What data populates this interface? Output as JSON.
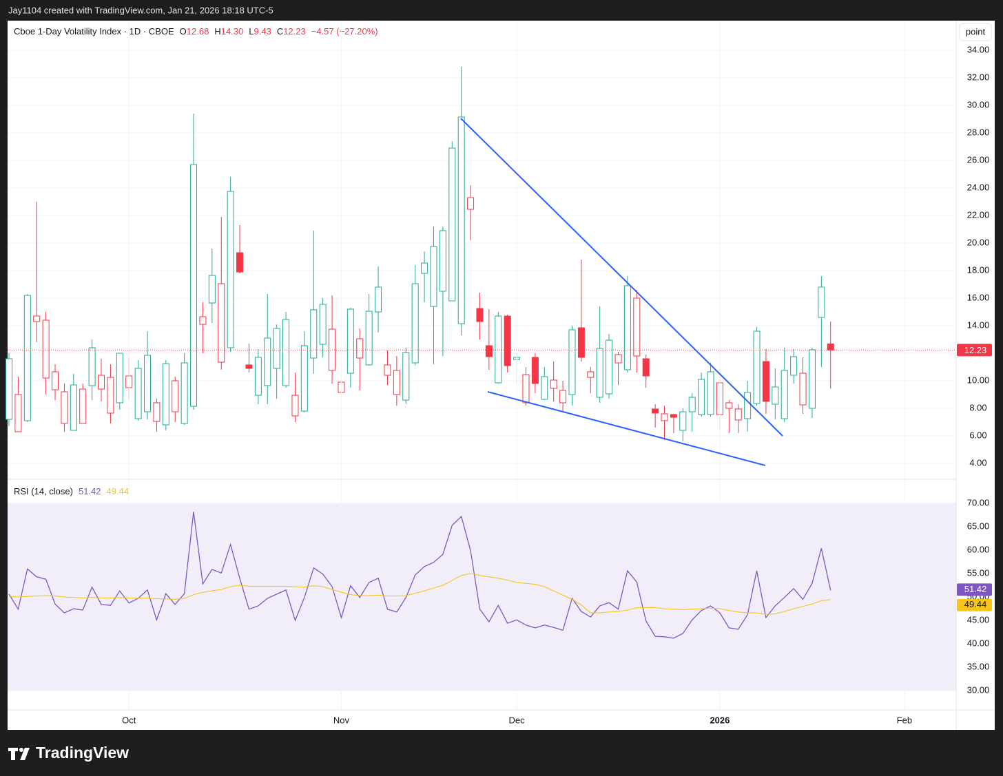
{
  "header": {
    "credit": "Jay1104 created with TradingView.com, Jan 21, 2026 18:18 UTC-5"
  },
  "scale_button": "point",
  "footer": {
    "brand": "TradingView"
  },
  "chart_data": [
    {
      "type": "candlestick",
      "title": "Cboe 1-Day Volatility Index · 1D · CBOE",
      "ohlc_header": [
        {
          "key": "O",
          "value": "12.68"
        },
        {
          "key": "H",
          "value": "14.30"
        },
        {
          "key": "L",
          "value": "9.43"
        },
        {
          "key": "C",
          "value": "12.23"
        }
      ],
      "change": "−4.57 (−27.20%)",
      "up_color": "#22ab94",
      "down_color": "#f23645",
      "open": [
        7.2,
        6.3,
        7.1,
        14.3,
        10.2,
        9.35,
        6.9,
        6.4,
        6.9,
        9.65,
        9.4,
        7.65,
        8.4,
        9.5,
        7.25,
        7.75,
        7.05,
        6.8,
        7.75,
        6.9,
        8.15,
        14.1,
        15.65,
        11.35,
        12.4,
        19.3,
        11.15,
        8.95,
        9.65,
        10.9,
        9.65,
        7.45,
        7.8,
        11.65,
        12.65,
        10.75,
        9.15,
        10.55,
        11.65,
        11.15,
        15.0,
        10.4,
        9.0,
        8.6,
        11.3,
        17.8,
        15.4,
        16.5,
        15.8,
        14.15,
        22.45,
        15.25,
        12.55,
        9.85,
        14.7,
        11.55,
        8.4,
        11.7,
        8.65,
        9.45,
        8.4,
        9.0,
        13.85,
        10.25,
        8.8,
        9.05,
        11.3,
        10.8,
        11.8,
        11.6,
        7.95,
        7.1,
        7.55,
        6.4,
        7.75,
        7.55,
        7.55,
        7.55,
        8.0,
        7.15,
        7.25,
        8.35,
        11.4,
        8.3,
        7.25,
        10.4,
        8.25,
        8.0,
        14.6,
        12.68
      ],
      "high": [
        12.0,
        10.3,
        16.3,
        23.0,
        15.0,
        11.2,
        9.8,
        10.5,
        9.8,
        13.0,
        11.6,
        11.2,
        12.0,
        11.7,
        11.5,
        13.6,
        8.7,
        11.5,
        10.3,
        12.0,
        29.4,
        15.7,
        19.6,
        21.9,
        24.8,
        21.3,
        12.7,
        12.3,
        16.3,
        14.1,
        15.0,
        10.6,
        13.6,
        20.9,
        16.0,
        16.2,
        10.2,
        15.3,
        13.8,
        16.3,
        18.3,
        12.2,
        11.8,
        12.4,
        18.4,
        19.4,
        21.2,
        21.2,
        27.4,
        32.8,
        24.2,
        16.4,
        15.2,
        15.0,
        14.8,
        12.0,
        11.0,
        12.0,
        11.0,
        11.4,
        10.0,
        14.0,
        18.8,
        11.0,
        15.4,
        13.4,
        12.1,
        17.6,
        16.6,
        11.9,
        8.3,
        8.2,
        7.6,
        8.0,
        9.1,
        10.6,
        11.3,
        10.9,
        8.6,
        8.3,
        10.0,
        13.9,
        12.3,
        10.9,
        12.4,
        12.3,
        11.7,
        12.4,
        17.6,
        14.3
      ],
      "low": [
        6.7,
        6.3,
        7.0,
        12.8,
        9.0,
        8.6,
        6.3,
        6.4,
        6.9,
        8.6,
        8.5,
        6.9,
        7.9,
        8.6,
        7.1,
        7.2,
        6.3,
        6.4,
        7.0,
        6.8,
        7.9,
        12.0,
        14.2,
        10.8,
        12.1,
        17.8,
        10.6,
        8.3,
        8.3,
        8.7,
        9.5,
        7.0,
        7.7,
        10.5,
        11.7,
        9.8,
        8.9,
        9.5,
        9.3,
        11.1,
        13.5,
        9.7,
        8.2,
        8.3,
        11.1,
        15.7,
        11.2,
        11.8,
        15.8,
        13.3,
        20.2,
        13.0,
        10.8,
        9.8,
        10.6,
        9.8,
        8.2,
        9.1,
        8.6,
        8.5,
        7.8,
        8.2,
        11.4,
        9.1,
        8.4,
        8.7,
        9.7,
        10.6,
        10.6,
        9.5,
        6.6,
        5.7,
        6.2,
        5.6,
        6.3,
        7.4,
        7.4,
        6.4,
        6.2,
        6.2,
        6.3,
        8.2,
        7.6,
        7.2,
        7.0,
        9.8,
        7.6,
        7.3,
        11.0,
        9.43
      ],
      "close": [
        11.6,
        9.0,
        16.2,
        14.7,
        14.4,
        10.65,
        9.2,
        9.7,
        9.4,
        12.4,
        10.4,
        10.25,
        12.0,
        10.35,
        10.9,
        11.85,
        8.4,
        11.25,
        10.0,
        11.3,
        25.7,
        14.65,
        17.65,
        17.05,
        23.75,
        17.9,
        10.9,
        11.7,
        13.1,
        13.8,
        14.45,
        8.95,
        12.55,
        15.15,
        15.55,
        13.75,
        9.9,
        15.2,
        13.05,
        15.05,
        16.8,
        11.15,
        10.75,
        12.05,
        17.05,
        18.55,
        19.75,
        20.9,
        26.9,
        29.15,
        23.3,
        14.3,
        11.75,
        14.7,
        11.1,
        11.7,
        10.45,
        9.8,
        10.3,
        10.05,
        9.3,
        13.7,
        11.7,
        10.65,
        12.35,
        12.95,
        11.9,
        16.9,
        16.0,
        10.35,
        7.65,
        7.6,
        7.35,
        7.75,
        8.8,
        10.1,
        10.65,
        9.85,
        8.4,
        7.95,
        9.15,
        13.6,
        8.5,
        9.55,
        10.75,
        11.75,
        10.55,
        12.25,
        16.8,
        12.23
      ],
      "xlim": [
        -0.15,
        102.6
      ],
      "ylim": [
        2.85,
        36.15
      ],
      "yticks": [
        {
          "value": 4,
          "label": "4.00"
        },
        {
          "value": 6,
          "label": "6.00"
        },
        {
          "value": 8,
          "label": "8.00"
        },
        {
          "value": 10,
          "label": "10.00"
        },
        {
          "value": 12,
          "label": "12.00"
        },
        {
          "value": 14,
          "label": "14.00"
        },
        {
          "value": 16,
          "label": "16.00"
        },
        {
          "value": 18,
          "label": "18.00"
        },
        {
          "value": 20,
          "label": "20.00"
        },
        {
          "value": 22,
          "label": "22.00"
        },
        {
          "value": 24,
          "label": "24.00"
        },
        {
          "value": 26,
          "label": "26.00"
        },
        {
          "value": 28,
          "label": "28.00"
        },
        {
          "value": 30,
          "label": "30.00"
        },
        {
          "value": 32,
          "label": "32.00"
        },
        {
          "value": 34,
          "label": "34.00"
        }
      ],
      "grid": true,
      "last_price_line": true
    },
    {
      "type": "line",
      "title": "RSI (14, close)",
      "series": [
        {
          "color": "#7e57c2",
          "values": [
            50.6,
            47.4,
            56.0,
            54.3,
            53.8,
            48.5,
            46.6,
            47.5,
            47.2,
            52.1,
            48.4,
            48.2,
            51.3,
            48.7,
            49.7,
            51.5,
            45.1,
            50.7,
            48.4,
            50.7,
            68.2,
            52.8,
            55.9,
            55.1,
            61.2,
            54.0,
            47.4,
            48.1,
            49.7,
            50.6,
            51.5,
            45.0,
            49.9,
            56.2,
            54.9,
            52.2,
            45.6,
            52.4,
            49.9,
            53.1,
            54.0,
            47.4,
            46.8,
            49.9,
            54.7,
            56.5,
            57.4,
            59.1,
            65.3,
            67.2,
            59.9,
            47.4,
            44.7,
            48.2,
            44.4,
            45.1,
            44.0,
            43.4,
            44.0,
            43.5,
            42.9,
            49.7,
            46.9,
            45.7,
            48.1,
            48.8,
            47.4,
            55.6,
            53.2,
            44.9,
            41.6,
            41.5,
            41.2,
            42.2,
            45.1,
            47.1,
            48.1,
            46.6,
            43.4,
            43.1,
            46.2,
            55.6,
            45.6,
            48.1,
            49.9,
            51.8,
            49.5,
            52.9,
            60.4,
            51.42
          ]
        },
        {
          "color": "#f5c518",
          "values": [
            50.1,
            50.0,
            50.1,
            50.2,
            50.3,
            50.2,
            50.0,
            49.9,
            49.8,
            49.9,
            49.8,
            49.8,
            49.9,
            49.8,
            49.7,
            49.8,
            49.6,
            49.6,
            49.5,
            49.7,
            50.5,
            51.0,
            51.3,
            51.6,
            52.2,
            52.5,
            52.3,
            52.3,
            52.3,
            52.3,
            52.3,
            52.2,
            52.1,
            52.4,
            52.2,
            51.6,
            51.0,
            50.5,
            50.3,
            50.3,
            50.4,
            50.2,
            50.2,
            50.3,
            50.8,
            51.3,
            51.9,
            52.5,
            53.5,
            54.6,
            55.0,
            54.6,
            54.3,
            54.0,
            53.6,
            53.1,
            52.9,
            52.7,
            52.2,
            51.3,
            50.4,
            49.5,
            48.3,
            46.6,
            46.6,
            46.8,
            46.9,
            47.2,
            47.7,
            47.7,
            47.7,
            47.5,
            47.4,
            47.3,
            47.4,
            47.5,
            47.6,
            47.5,
            47.1,
            46.8,
            46.6,
            46.6,
            46.3,
            46.4,
            46.9,
            47.5,
            48.0,
            48.5,
            49.2,
            49.44
          ]
        }
      ],
      "band": [
        30,
        70
      ],
      "xlim": [
        -0.15,
        102.6
      ],
      "ylim": [
        25.88,
        75.15
      ],
      "yticks": [
        {
          "value": 30,
          "label": "30.00"
        },
        {
          "value": 35,
          "label": "35.00"
        },
        {
          "value": 40,
          "label": "40.00"
        },
        {
          "value": 45,
          "label": "45.00"
        },
        {
          "value": 50,
          "label": "50.00"
        },
        {
          "value": 55,
          "label": "55.00"
        },
        {
          "value": 60,
          "label": "60.00"
        },
        {
          "value": 65,
          "label": "65.00"
        },
        {
          "value": 70,
          "label": "70.00"
        }
      ],
      "xticks": [
        {
          "value": 13,
          "label": "Oct"
        },
        {
          "value": 36,
          "label": "Nov"
        },
        {
          "value": 55,
          "label": "Dec"
        },
        {
          "value": 77,
          "label": "2026"
        },
        {
          "value": 97,
          "label": "Feb"
        }
      ],
      "grid": true
    }
  ]
}
